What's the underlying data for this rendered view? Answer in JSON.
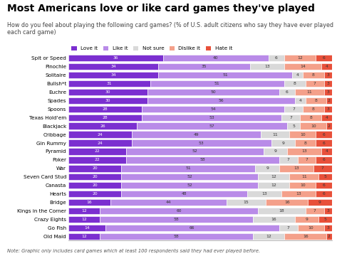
{
  "chart_data": {
    "type": "bar",
    "title": "Most Americans love or like card games they've played",
    "subtitle": "How do you feel about playing the following card games? (% of U.S. adult citizens who say they have ever played each card game)",
    "note": "Note: Graphic only includes card games which at least 100 respondents said they had ever played before.",
    "orientation": "horizontal",
    "stacked": true,
    "data_labels": true,
    "tick_labels": "y",
    "legend": "lower left",
    "grid": false,
    "xlim": [
      0,
      100
    ],
    "categories": [
      "Spit or Speed",
      "Pinochle",
      "Solitaire",
      "Bullsh*t",
      "Euchre",
      "Spades",
      "Spoons",
      "Texas Hold'em",
      "Blackjack",
      "Cribbage",
      "Gin Rummy",
      "Pyramid",
      "Poker",
      "War",
      "Seven Card Stud",
      "Canasta",
      "Hearts",
      "Bridge",
      "Kings in the Corner",
      "Crazy Eights",
      "Go Fish",
      "Old Maid"
    ],
    "series": [
      {
        "name": "Love it",
        "color": "#7b2fd0",
        "values": [
          36,
          34,
          34,
          31,
          30,
          30,
          28,
          28,
          26,
          24,
          24,
          22,
          22,
          20,
          20,
          20,
          20,
          16,
          12,
          12,
          14,
          12
        ]
      },
      {
        "name": "Like it",
        "color": "#b98be8",
        "values": [
          40,
          35,
          51,
          51,
          50,
          56,
          54,
          53,
          57,
          49,
          53,
          52,
          58,
          51,
          52,
          52,
          48,
          44,
          60,
          58,
          66,
          58
        ]
      },
      {
        "name": "Not sure",
        "color": "#d9d9d9",
        "values": [
          6,
          13,
          4,
          8,
          6,
          4,
          7,
          7,
          5,
          11,
          9,
          9,
          7,
          9,
          12,
          12,
          13,
          15,
          18,
          16,
          7,
          12
        ]
      },
      {
        "name": "Dislike it",
        "color": "#f4a08a",
        "values": [
          12,
          14,
          8,
          7,
          11,
          8,
          8,
          8,
          10,
          10,
          8,
          13,
          7,
          13,
          11,
          10,
          13,
          16,
          7,
          9,
          10,
          16
        ]
      },
      {
        "name": "Hate it",
        "color": "#e8503a",
        "values": [
          6,
          4,
          3,
          3,
          3,
          2,
          3,
          4,
          2,
          6,
          6,
          4,
          6,
          7,
          5,
          6,
          6,
          9,
          3,
          5,
          3,
          2
        ]
      }
    ]
  }
}
